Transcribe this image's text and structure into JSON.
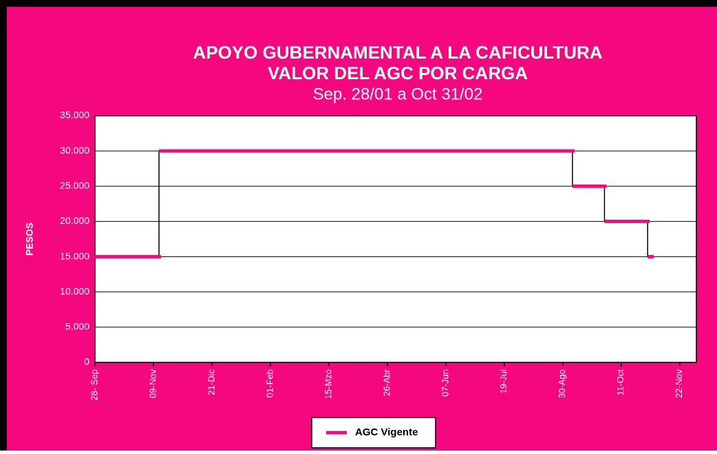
{
  "chart_data": {
    "type": "line",
    "title": "APOYO GUBERNAMENTAL A LA CAFICULTURA",
    "subtitle": "VALOR DEL AGC POR CARGA",
    "subtitle2": "Sep. 28/01 a Oct 31/02",
    "y_label": "PESOS",
    "x": [
      0,
      46,
      46,
      343,
      343,
      366,
      366,
      397,
      397,
      400
    ],
    "series": [
      {
        "name": "AGC Vigente",
        "color": "#e8107f",
        "values": [
          15000,
          15000,
          30000,
          30000,
          25000,
          25000,
          20000,
          20000,
          15000,
          15000
        ]
      }
    ],
    "xlim": [
      0,
      432
    ],
    "xticks": [
      {
        "value": 0,
        "label": "28- Sep"
      },
      {
        "value": 42,
        "label": "09-Nov"
      },
      {
        "value": 84,
        "label": "21-Dic"
      },
      {
        "value": 126,
        "label": "01-Feb"
      },
      {
        "value": 168,
        "label": "15-Mzo"
      },
      {
        "value": 210,
        "label": "26-Abr"
      },
      {
        "value": 252,
        "label": "07-Jun"
      },
      {
        "value": 294,
        "label": "19-Jul"
      },
      {
        "value": 336,
        "label": "30-Ago"
      },
      {
        "value": 378,
        "label": "11-Oct"
      },
      {
        "value": 420,
        "label": "22-Nov"
      }
    ],
    "ylim": [
      0,
      35000
    ],
    "yticks": [
      0,
      {
        "value": 5000,
        "label": "5.000"
      },
      {
        "value": 10000,
        "label": "10.000"
      },
      {
        "value": 15000,
        "label": "15.000"
      },
      {
        "value": 20000,
        "label": "20.000"
      },
      {
        "value": 25000,
        "label": "25.000"
      },
      {
        "value": 30000,
        "label": "30.000"
      },
      {
        "value": 35000,
        "label": "35.000"
      }
    ],
    "grid": true,
    "legend": "bottom"
  }
}
